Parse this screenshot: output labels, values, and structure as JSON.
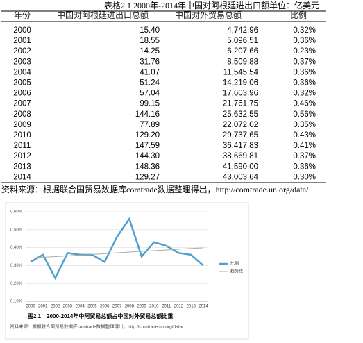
{
  "table": {
    "caption": "表格2.1 2000年-2014年中国对阿根廷进出口额",
    "unit": "单位：亿美元",
    "headers": [
      "年份",
      "中国对阿根廷进出口总额",
      "中国对外贸易总额",
      "比例"
    ],
    "rows": [
      [
        "2000",
        "15.40",
        "4,742.96",
        "0.32%"
      ],
      [
        "2001",
        "18.55",
        "5,096.51",
        "0.36%"
      ],
      [
        "2002",
        "14.25",
        "6,207.66",
        "0.23%"
      ],
      [
        "2003",
        "31.76",
        "8,509.88",
        "0.37%"
      ],
      [
        "2004",
        "41.07",
        "11,545.54",
        "0.36%"
      ],
      [
        "2005",
        "51.24",
        "14,219.06",
        "0.36%"
      ],
      [
        "2006",
        "57.04",
        "17,603.96",
        "0.32%"
      ],
      [
        "2007",
        "99.15",
        "21,761.75",
        "0.46%"
      ],
      [
        "2008",
        "144.16",
        "25,632.55",
        "0.56%"
      ],
      [
        "2009",
        "77.89",
        "22,072.02",
        "0.35%"
      ],
      [
        "2010",
        "129.20",
        "29,737.65",
        "0.43%"
      ],
      [
        "2011",
        "147.59",
        "36,417.83",
        "0.41%"
      ],
      [
        "2012",
        "144.30",
        "38,669.81",
        "0.37%"
      ],
      [
        "2013",
        "148.36",
        "41,590.00",
        "0.36%"
      ],
      [
        "2014",
        "129.27",
        "43,003.64",
        "0.30%"
      ]
    ],
    "source": "资料来源：根据联合国贸易数据库comtrade数据整理得出，http://comtrade.un.org/data/"
  },
  "chart_data": {
    "type": "line",
    "title": "图2.1　2000-2014年中阿贸易总额占中国对外贸易总额比重",
    "source": "资料来源：根据联合国贸易数据库comtrade数据整理得出，http://comtrade.un.org/data/",
    "categories": [
      "2000",
      "2001",
      "2002",
      "2003",
      "2004",
      "2005",
      "2006",
      "2007",
      "2008",
      "2009",
      "2010",
      "2011",
      "2012",
      "2013",
      "2014"
    ],
    "series": [
      {
        "name": "比例",
        "color": "#4f9fcf",
        "values": [
          0.32,
          0.36,
          0.23,
          0.37,
          0.36,
          0.36,
          0.32,
          0.46,
          0.56,
          0.35,
          0.43,
          0.41,
          0.37,
          0.36,
          0.3
        ]
      },
      {
        "name": "趋势线",
        "color": "#aaaaaa",
        "values": [
          0.342,
          0.346,
          0.35,
          0.354,
          0.358,
          0.362,
          0.366,
          0.371,
          0.375,
          0.379,
          0.383,
          0.387,
          0.391,
          0.395,
          0.399
        ]
      }
    ],
    "ylim": [
      0.1,
      0.6
    ],
    "yticks": [
      {
        "value": 0.1,
        "label": "0.10%"
      },
      {
        "value": 0.2,
        "label": "0.20%"
      },
      {
        "value": 0.3,
        "label": "0.30%"
      },
      {
        "value": 0.4,
        "label": "0.40%"
      },
      {
        "value": 0.5,
        "label": "0.50%"
      },
      {
        "value": 0.6,
        "label": "0.60%"
      }
    ],
    "grid": true,
    "legend": "right"
  }
}
